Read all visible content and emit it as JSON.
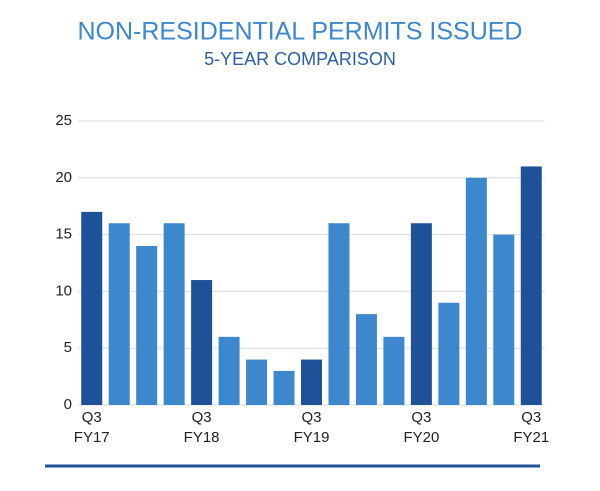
{
  "chart_data": {
    "type": "bar",
    "title": "NON-RESIDENTIAL PERMITS ISSUED",
    "subtitle": "5-YEAR COMPARISON",
    "categories": [
      "Q3\nFY17",
      null,
      null,
      null,
      "Q3\nFY18",
      null,
      null,
      null,
      "Q3\nFY19",
      null,
      null,
      null,
      "Q3\nFY20",
      null,
      null,
      null,
      "Q3\nFY21"
    ],
    "values": [
      17,
      16,
      14,
      16,
      11,
      6,
      4,
      3,
      4,
      16,
      8,
      6,
      16,
      9,
      20,
      15,
      21
    ],
    "colors": [
      "#1f5199",
      "#3d87cd",
      "#3d87cd",
      "#3d87cd",
      "#1f5199",
      "#3d87cd",
      "#3d87cd",
      "#3d87cd",
      "#1f5199",
      "#3d87cd",
      "#3d87cd",
      "#3d87cd",
      "#1f5199",
      "#3d87cd",
      "#3d87cd",
      "#3d87cd",
      "#1f5199"
    ],
    "ylim": [
      0,
      25
    ],
    "yticks": [
      0,
      5,
      10,
      15,
      20,
      25
    ],
    "grid": true
  }
}
